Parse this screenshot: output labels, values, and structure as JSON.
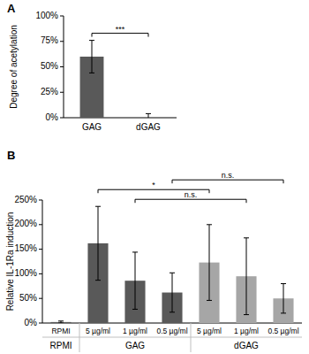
{
  "chart_data": [
    {
      "type": "bar",
      "title": "A",
      "y_label": "Degree of acetylation",
      "categories": [
        "GAG",
        "dGAG"
      ],
      "values": [
        60,
        0
      ],
      "errors": [
        16,
        4
      ],
      "color": "#595959",
      "ylim": [
        0,
        100
      ],
      "yticks": [
        {
          "value": 0,
          "label": "0%"
        },
        {
          "value": 25,
          "label": "25%"
        },
        {
          "value": 50,
          "label": "50%"
        },
        {
          "value": 75,
          "label": "75%"
        },
        {
          "value": 100,
          "label": "100%"
        }
      ],
      "annotations": [
        {
          "text": "***",
          "from": 0,
          "to": 1
        }
      ]
    },
    {
      "type": "bar",
      "title": "B",
      "y_label": "Relative IL-1Ra induction",
      "categories": [
        "RPMI",
        "5 µg/ml",
        "1 µg/ml",
        "0.5 µg/ml",
        "5 µg/ml",
        "1 µg/ml",
        "0.5 µg/ml"
      ],
      "values": [
        2,
        162,
        86,
        62,
        123,
        95,
        50
      ],
      "errors": [
        2,
        75,
        58,
        40,
        77,
        78,
        30
      ],
      "colors": [
        "#595959",
        "#595959",
        "#595959",
        "#595959",
        "#a6a6a6",
        "#a6a6a6",
        "#a6a6a6"
      ],
      "groups": [
        {
          "name": "RPMI",
          "from": 0,
          "to": 0
        },
        {
          "name": "GAG",
          "from": 1,
          "to": 3
        },
        {
          "name": "dGAG",
          "from": 4,
          "to": 6
        }
      ],
      "ylim": [
        0,
        250
      ],
      "yticks": [
        {
          "value": 0,
          "label": "0%"
        },
        {
          "value": 50,
          "label": "50%"
        },
        {
          "value": 100,
          "label": "100%"
        },
        {
          "value": 150,
          "label": "150%"
        },
        {
          "value": 200,
          "label": "200%"
        },
        {
          "value": 250,
          "label": "250%"
        }
      ],
      "annotations": [
        {
          "text": "n.s.",
          "from": 3,
          "to": 6
        },
        {
          "text": "*",
          "from": 1,
          "to": 4
        },
        {
          "text": "n.s.",
          "from": 2,
          "to": 5
        }
      ]
    }
  ]
}
